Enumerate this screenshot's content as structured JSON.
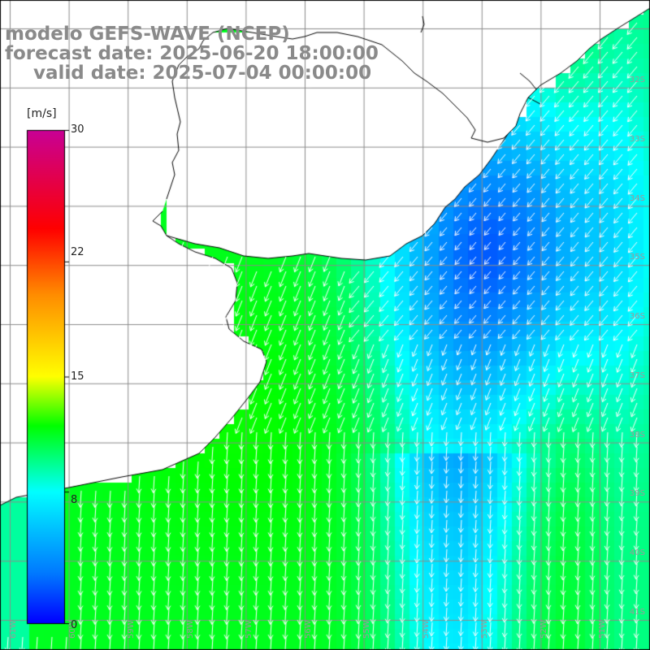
{
  "title": {
    "line1": "modelo GEFS-WAVE (NCEP)",
    "line2": "forecast date: 2025-06-20 18:00:00",
    "line3": "valid date: 2025-07-04 00:00:00"
  },
  "colorbar": {
    "unit": "[m/s]",
    "min": 0,
    "max": 30,
    "labels": [
      "30",
      "22",
      "15",
      "8",
      "0"
    ],
    "label_values": [
      30,
      22,
      15,
      8,
      0
    ],
    "stops": [
      {
        "v": 0,
        "color": "#0000ff"
      },
      {
        "v": 3,
        "color": "#0078ff"
      },
      {
        "v": 6,
        "color": "#00c8ff"
      },
      {
        "v": 8,
        "color": "#00ffff"
      },
      {
        "v": 12,
        "color": "#00ff00"
      },
      {
        "v": 15,
        "color": "#ffff00"
      },
      {
        "v": 20,
        "color": "#ff8c00"
      },
      {
        "v": 24,
        "color": "#ff0000"
      },
      {
        "v": 30,
        "color": "#c80096"
      }
    ]
  },
  "lat_labels": [
    "32S",
    "33S",
    "34S",
    "35S",
    "36S",
    "37S",
    "38S",
    "39S",
    "40S",
    "41S"
  ],
  "lon_labels": [
    "61W",
    "60W",
    "59W",
    "58W",
    "57W",
    "56W",
    "55W",
    "54W",
    "53W",
    "52W",
    "51W"
  ],
  "field": {
    "description_values_ms": "wind speed field",
    "northeast_min": 4,
    "coastal_mid": 11,
    "south_channel": 8
  }
}
